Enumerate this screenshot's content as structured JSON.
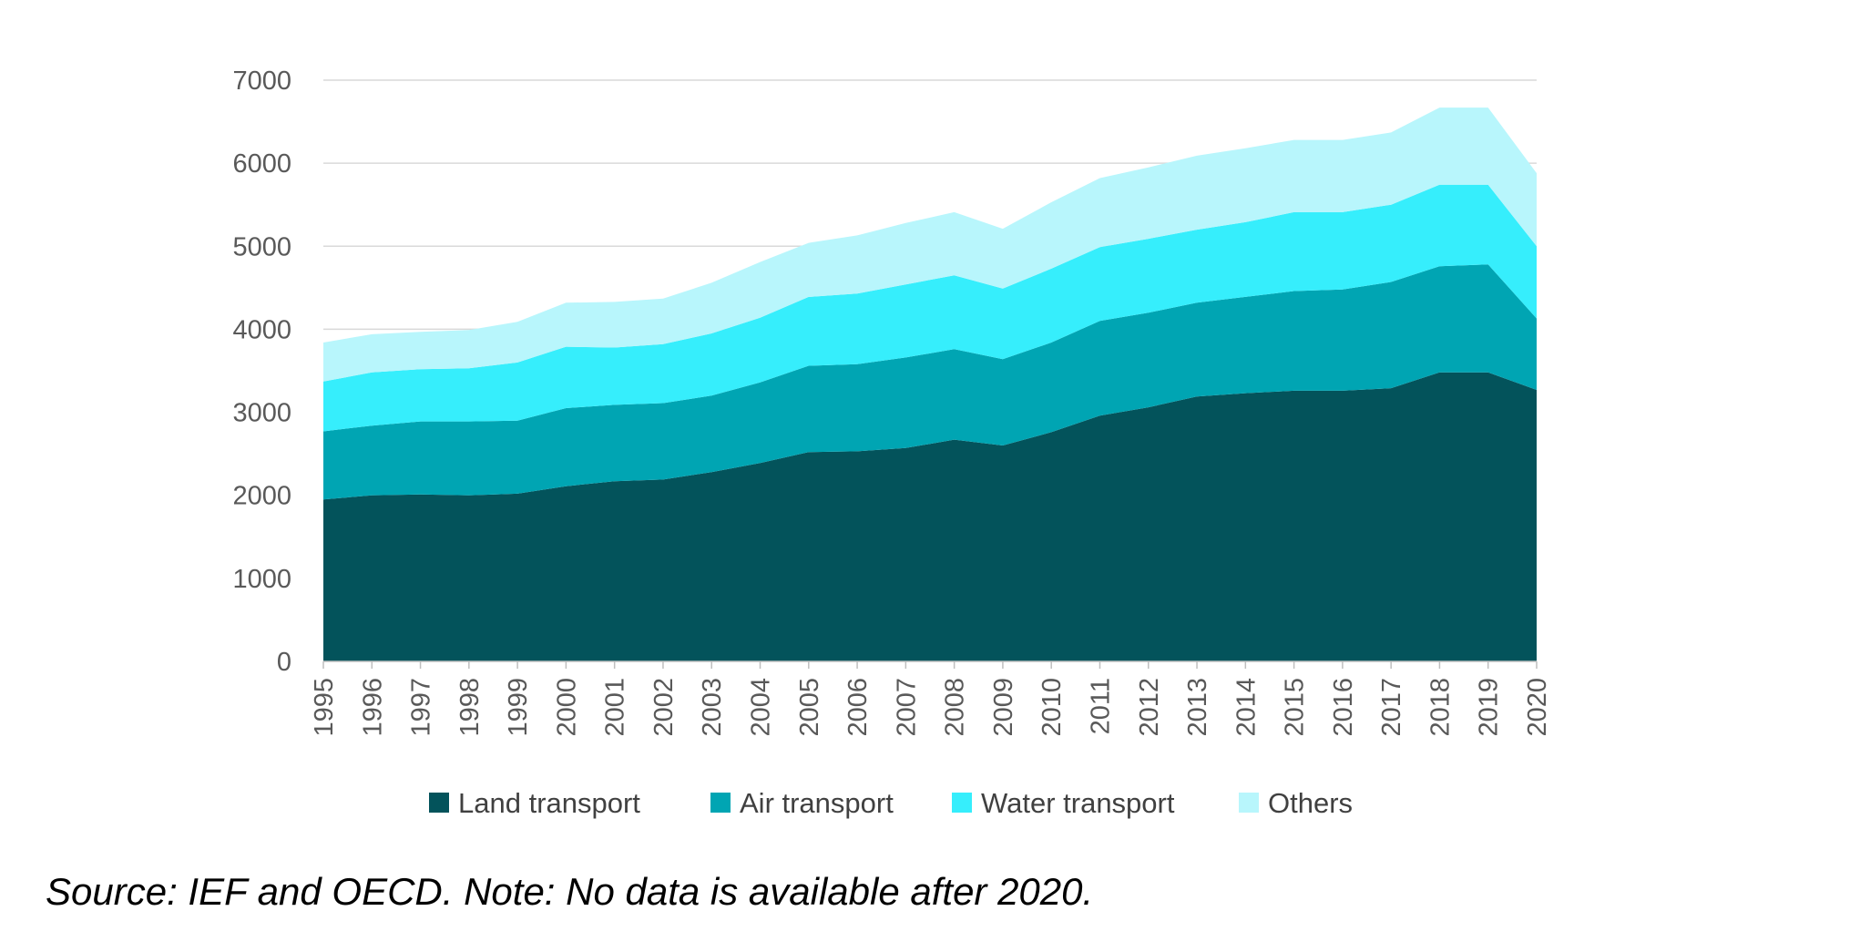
{
  "chart_data": {
    "type": "area",
    "stacked": true,
    "title": "",
    "xlabel": "",
    "ylabel": "",
    "ylim": [
      0,
      7000
    ],
    "yticks": [
      0,
      1000,
      2000,
      3000,
      4000,
      5000,
      6000,
      7000
    ],
    "grid": true,
    "legend_position": "bottom",
    "categories": [
      "1995",
      "1996",
      "1997",
      "1998",
      "1999",
      "2000",
      "2001",
      "2002",
      "2003",
      "2004",
      "2005",
      "2006",
      "2007",
      "2008",
      "2009",
      "2010",
      "2011",
      "2012",
      "2013",
      "2014",
      "2015",
      "2016",
      "2017",
      "2018",
      "2019",
      "2020"
    ],
    "series": [
      {
        "name": "Land transport",
        "color": "#03535B",
        "values": [
          1950,
          2000,
          2010,
          2000,
          2020,
          2110,
          2170,
          2190,
          2280,
          2390,
          2520,
          2530,
          2570,
          2670,
          2600,
          2760,
          2960,
          3060,
          3190,
          3230,
          3260,
          3260,
          3290,
          3480,
          3480,
          3270
        ]
      },
      {
        "name": "Air transport",
        "color": "#00A5B3",
        "values": [
          820,
          840,
          880,
          890,
          880,
          940,
          920,
          920,
          920,
          970,
          1040,
          1050,
          1090,
          1090,
          1040,
          1080,
          1140,
          1140,
          1130,
          1160,
          1200,
          1220,
          1280,
          1280,
          1300,
          860
        ]
      },
      {
        "name": "Water transport",
        "color": "#36EEFC",
        "values": [
          600,
          640,
          630,
          640,
          700,
          740,
          690,
          710,
          750,
          780,
          830,
          850,
          880,
          890,
          850,
          890,
          890,
          890,
          880,
          900,
          950,
          930,
          930,
          980,
          960,
          870
        ]
      },
      {
        "name": "Others",
        "color": "#B8F6FC",
        "values": [
          470,
          460,
          450,
          460,
          490,
          530,
          550,
          550,
          610,
          670,
          650,
          700,
          740,
          760,
          720,
          800,
          830,
          860,
          890,
          890,
          870,
          870,
          870,
          930,
          930,
          880
        ]
      }
    ]
  },
  "source_note": "Source: IEF and OECD. Note: No data is available after 2020."
}
